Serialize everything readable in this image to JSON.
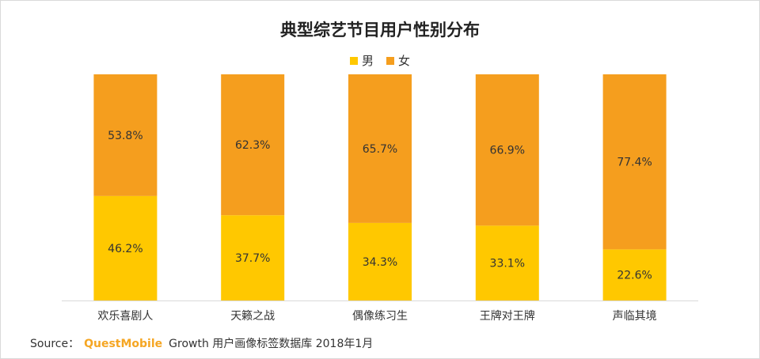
{
  "chart_data": {
    "type": "bar",
    "stacked": true,
    "title": "典型综艺节目用户性别分布",
    "categories": [
      "欢乐喜剧人",
      "天籁之战",
      "偶像练习生",
      "王牌对王牌",
      "声临其境"
    ],
    "series": [
      {
        "name": "男",
        "color": "#FFC800",
        "values": [
          46.2,
          37.7,
          34.3,
          33.1,
          22.6
        ]
      },
      {
        "name": "女",
        "color": "#F59E1E",
        "values": [
          53.8,
          62.3,
          65.7,
          66.9,
          77.4
        ]
      }
    ],
    "value_suffix": "%",
    "ylim": [
      0,
      100
    ],
    "legend_position": "top",
    "grid": false
  },
  "footer": {
    "source_label": "Source：",
    "brand": "QuestMobile",
    "text": "Growth 用户画像标签数据库 2018年1月"
  }
}
